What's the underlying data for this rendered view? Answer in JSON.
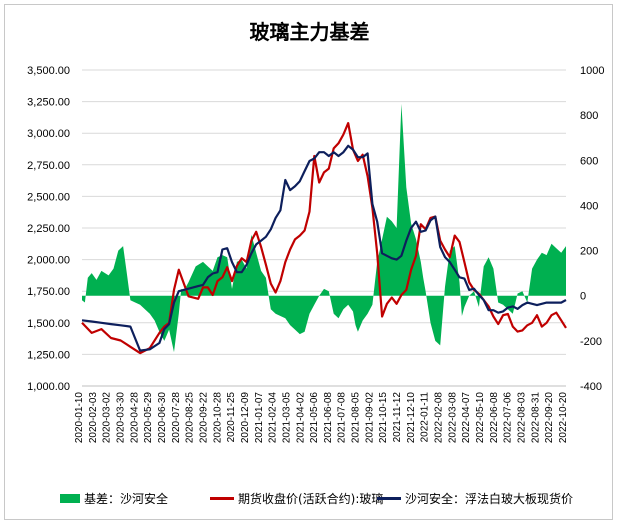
{
  "title": "玻璃主力基差",
  "chart_data": {
    "type": "line",
    "title": "玻璃主力基差",
    "left_axis": {
      "range": [
        1000,
        3500
      ],
      "ticks": [
        1000,
        1250,
        1500,
        1750,
        2000,
        2250,
        2500,
        2750,
        3000,
        3250,
        3500
      ],
      "tick_labels": [
        "1,000.00",
        "1,250.00",
        "1,500.00",
        "1,750.00",
        "2,000.00",
        "2,250.00",
        "2,500.00",
        "2,750.00",
        "3,000.00",
        "3,250.00",
        "3,500.00"
      ]
    },
    "right_axis": {
      "range": [
        -400,
        1000
      ],
      "ticks": [
        -400,
        -200,
        0,
        200,
        400,
        600,
        800,
        1000
      ],
      "tick_labels": [
        "-400",
        "-200",
        "0",
        "200",
        "400",
        "600",
        "800",
        "1000"
      ]
    },
    "x_axis": {
      "range": [
        "2020-01-10",
        "2022-10-20"
      ],
      "tick_labels": [
        "2020-01-10",
        "2020-02-03",
        "2020-03-02",
        "2020-03-30",
        "2020-04-28",
        "2020-05-29",
        "2020-06-30",
        "2020-07-28",
        "2020-08-25",
        "2020-09-22",
        "2020-10-28",
        "2020-11-25",
        "2020-12-09",
        "2021-01-07",
        "2021-02-04",
        "2021-03-05",
        "2021-04-02",
        "2021-05-06",
        "2021-06-08",
        "2021-07-08",
        "2021-08-05",
        "2021-09-02",
        "2021-10-15",
        "2021-11-12",
        "2021-12-10",
        "2022-01-11",
        "2022-02-08",
        "2022-03-08",
        "2022-04-07",
        "2022-05-10",
        "2022-06-08",
        "2022-07-06",
        "2022-08-03",
        "2022-08-31",
        "2022-09-20",
        "2022-10-20"
      ]
    },
    "grid": "horizontal",
    "legend_position": "bottom",
    "series": [
      {
        "name": "基差：沙河安全",
        "kind": "area",
        "axis": "right",
        "color": "#00b050",
        "x": [
          0.0,
          0.006,
          0.012,
          0.02,
          0.03,
          0.04,
          0.055,
          0.065,
          0.075,
          0.085,
          0.092,
          0.1,
          0.11,
          0.12,
          0.13,
          0.14,
          0.15,
          0.16,
          0.17,
          0.18,
          0.19,
          0.2,
          0.205,
          0.21,
          0.22,
          0.235,
          0.25,
          0.26,
          0.27,
          0.28,
          0.29,
          0.3,
          0.31,
          0.32,
          0.33,
          0.34,
          0.35,
          0.36,
          0.37,
          0.38,
          0.385,
          0.39,
          0.4,
          0.41,
          0.42,
          0.43,
          0.44,
          0.45,
          0.46,
          0.47,
          0.48,
          0.49,
          0.5,
          0.51,
          0.52,
          0.53,
          0.54,
          0.55,
          0.56,
          0.565,
          0.57,
          0.58,
          0.59,
          0.6,
          0.61,
          0.62,
          0.63,
          0.64,
          0.65,
          0.66,
          0.67,
          0.68,
          0.69,
          0.7,
          0.705,
          0.71,
          0.72,
          0.73,
          0.74,
          0.75,
          0.76,
          0.77,
          0.78,
          0.785,
          0.79,
          0.8,
          0.81,
          0.82,
          0.83,
          0.84,
          0.85,
          0.86,
          0.87,
          0.88,
          0.89,
          0.9,
          0.91,
          0.92,
          0.93,
          0.94,
          0.95,
          0.96,
          0.97,
          0.98,
          0.99,
          1.0
        ],
        "values": [
          -20,
          -30,
          80,
          100,
          70,
          110,
          90,
          120,
          200,
          220,
          110,
          -20,
          -30,
          -40,
          -60,
          -80,
          -110,
          -160,
          -200,
          -150,
          -250,
          -80,
          30,
          20,
          60,
          130,
          150,
          130,
          110,
          170,
          180,
          170,
          30,
          150,
          160,
          120,
          270,
          190,
          110,
          80,
          10,
          -60,
          -80,
          -90,
          -100,
          -130,
          -150,
          -170,
          -160,
          -80,
          -40,
          0,
          30,
          20,
          -80,
          -100,
          -60,
          -40,
          -70,
          -130,
          -160,
          -110,
          -80,
          -40,
          150,
          250,
          350,
          330,
          300,
          850,
          480,
          320,
          250,
          150,
          80,
          20,
          -120,
          -200,
          -220,
          40,
          200,
          220,
          60,
          -90,
          -50,
          0,
          20,
          -50,
          130,
          170,
          120,
          -30,
          -40,
          -60,
          -80,
          10,
          20,
          -30,
          120,
          160,
          190,
          180,
          230,
          210,
          190,
          220
        ]
      },
      {
        "name": "期货收盘价(活跃合约):玻璃",
        "kind": "line",
        "axis": "left",
        "color": "#c00000",
        "x": [
          0.0,
          0.02,
          0.04,
          0.06,
          0.08,
          0.1,
          0.12,
          0.14,
          0.16,
          0.17,
          0.18,
          0.19,
          0.2,
          0.22,
          0.24,
          0.25,
          0.26,
          0.27,
          0.28,
          0.29,
          0.3,
          0.31,
          0.32,
          0.33,
          0.34,
          0.35,
          0.36,
          0.37,
          0.38,
          0.39,
          0.4,
          0.41,
          0.42,
          0.43,
          0.44,
          0.45,
          0.46,
          0.47,
          0.48,
          0.49,
          0.5,
          0.51,
          0.52,
          0.53,
          0.54,
          0.55,
          0.56,
          0.57,
          0.58,
          0.59,
          0.6,
          0.61,
          0.62,
          0.63,
          0.64,
          0.65,
          0.66,
          0.67,
          0.68,
          0.69,
          0.7,
          0.71,
          0.72,
          0.73,
          0.74,
          0.75,
          0.76,
          0.77,
          0.78,
          0.79,
          0.8,
          0.81,
          0.82,
          0.83,
          0.84,
          0.85,
          0.86,
          0.87,
          0.88,
          0.89,
          0.9,
          0.91,
          0.92,
          0.93,
          0.94,
          0.95,
          0.96,
          0.97,
          0.98,
          0.99,
          1.0
        ],
        "values": [
          1500,
          1420,
          1450,
          1380,
          1360,
          1310,
          1260,
          1300,
          1420,
          1470,
          1500,
          1760,
          1920,
          1710,
          1690,
          1780,
          1780,
          1720,
          1830,
          1860,
          1940,
          1830,
          1950,
          2010,
          1980,
          2150,
          2220,
          2100,
          1960,
          1810,
          1740,
          1830,
          1980,
          2080,
          2160,
          2190,
          2230,
          2380,
          2820,
          2610,
          2690,
          2720,
          2880,
          2920,
          2990,
          3080,
          2870,
          2780,
          2830,
          2660,
          2410,
          2050,
          1550,
          1650,
          1700,
          1650,
          1720,
          1760,
          1920,
          2030,
          2280,
          2240,
          2330,
          2340,
          2150,
          2080,
          2020,
          2190,
          2140,
          1980,
          1820,
          1760,
          1730,
          1680,
          1630,
          1550,
          1490,
          1560,
          1570,
          1470,
          1430,
          1440,
          1480,
          1500,
          1560,
          1470,
          1500,
          1560,
          1580,
          1520,
          1460
        ]
      },
      {
        "name": "沙河安全：浮法白玻大板现货价",
        "kind": "line",
        "axis": "left",
        "color": "#0d1f5c",
        "x": [
          0.0,
          0.02,
          0.04,
          0.06,
          0.08,
          0.1,
          0.12,
          0.14,
          0.16,
          0.17,
          0.18,
          0.19,
          0.2,
          0.22,
          0.24,
          0.25,
          0.26,
          0.27,
          0.28,
          0.29,
          0.3,
          0.31,
          0.32,
          0.33,
          0.34,
          0.35,
          0.36,
          0.37,
          0.38,
          0.39,
          0.4,
          0.41,
          0.42,
          0.43,
          0.44,
          0.45,
          0.46,
          0.47,
          0.48,
          0.49,
          0.5,
          0.51,
          0.52,
          0.53,
          0.54,
          0.55,
          0.56,
          0.57,
          0.58,
          0.59,
          0.6,
          0.61,
          0.62,
          0.63,
          0.64,
          0.65,
          0.66,
          0.67,
          0.68,
          0.69,
          0.7,
          0.71,
          0.72,
          0.73,
          0.74,
          0.75,
          0.76,
          0.77,
          0.78,
          0.79,
          0.8,
          0.81,
          0.82,
          0.83,
          0.84,
          0.85,
          0.86,
          0.87,
          0.88,
          0.89,
          0.9,
          0.91,
          0.92,
          0.93,
          0.94,
          0.95,
          0.96,
          0.97,
          0.98,
          0.99,
          1.0
        ],
        "values": [
          1520,
          1510,
          1500,
          1490,
          1480,
          1470,
          1280,
          1290,
          1340,
          1450,
          1490,
          1660,
          1750,
          1770,
          1790,
          1800,
          1860,
          1890,
          1900,
          2080,
          2090,
          1980,
          1900,
          1900,
          1960,
          2050,
          2120,
          2150,
          2180,
          2240,
          2330,
          2390,
          2630,
          2550,
          2580,
          2620,
          2700,
          2780,
          2800,
          2850,
          2850,
          2820,
          2850,
          2820,
          2850,
          2900,
          2870,
          2810,
          2810,
          2840,
          2440,
          2300,
          2050,
          2030,
          2010,
          2000,
          2030,
          2150,
          2250,
          2300,
          2220,
          2230,
          2310,
          2340,
          2100,
          2020,
          1980,
          1920,
          1860,
          1850,
          1760,
          1770,
          1720,
          1680,
          1600,
          1600,
          1580,
          1590,
          1620,
          1630,
          1610,
          1640,
          1660,
          1650,
          1640,
          1650,
          1660,
          1660,
          1660,
          1660,
          1680
        ]
      }
    ]
  }
}
